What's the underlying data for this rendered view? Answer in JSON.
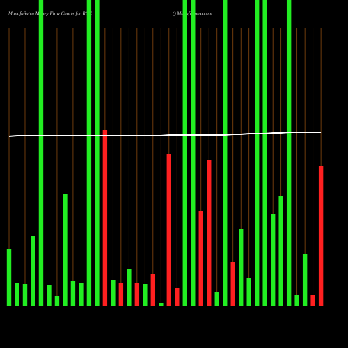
{
  "chart_data": {
    "type": "bar",
    "title": "MunafaSutra  Money Flow  Charts for RCC",
    "subtitle": "() MunafaSutra.com",
    "categories": [
      null,
      null,
      null,
      null,
      null,
      null,
      null,
      null,
      null,
      null,
      null,
      null,
      null,
      null,
      null,
      null,
      null,
      null,
      null,
      null,
      null,
      null,
      null,
      null,
      null,
      null,
      null,
      null,
      null,
      null,
      null,
      null,
      null,
      null,
      null,
      null,
      null,
      null,
      null,
      null
    ],
    "values": [
      82,
      33,
      32,
      101,
      440,
      30,
      15,
      161,
      36,
      33,
      440,
      440,
      253,
      37,
      33,
      53,
      33,
      32,
      47,
      5,
      219,
      26,
      440,
      440,
      137,
      210,
      21,
      440,
      63,
      111,
      40,
      440,
      440,
      132,
      159,
      440,
      16,
      75,
      16,
      201
    ],
    "colors": [
      "#22ee22",
      "#22ee22",
      "#22ee22",
      "#22ee22",
      "#22ee22",
      "#22ee22",
      "#22ee22",
      "#22ee22",
      "#22ee22",
      "#22ee22",
      "#22ee22",
      "#22ee22",
      "#ff2020",
      "#22ee22",
      "#ff2020",
      "#22ee22",
      "#ff2020",
      "#22ee22",
      "#ff2020",
      "#22ee22",
      "#ff2020",
      "#ff2020",
      "#22ee22",
      "#22ee22",
      "#ff2020",
      "#ff2020",
      "#22ee22",
      "#22ee22",
      "#ff2020",
      "#22ee22",
      "#22ee22",
      "#22ee22",
      "#22ee22",
      "#22ee22",
      "#22ee22",
      "#22ee22",
      "#22ee22",
      "#22ee22",
      "#ff2020",
      "#ff2020"
    ],
    "line": {
      "color": "#ffffff",
      "values": [
        244,
        245,
        245,
        245,
        245,
        245,
        245,
        245,
        245,
        245,
        245,
        245,
        245,
        245,
        245,
        245,
        245,
        245,
        245,
        245,
        246,
        246,
        246,
        246,
        246,
        246,
        246,
        246,
        247,
        247,
        248,
        248,
        248,
        249,
        249,
        250,
        250,
        250,
        250,
        250
      ]
    },
    "ylim": [
      0,
      440
    ],
    "grid": true,
    "grid_color": "#8a4a10"
  }
}
